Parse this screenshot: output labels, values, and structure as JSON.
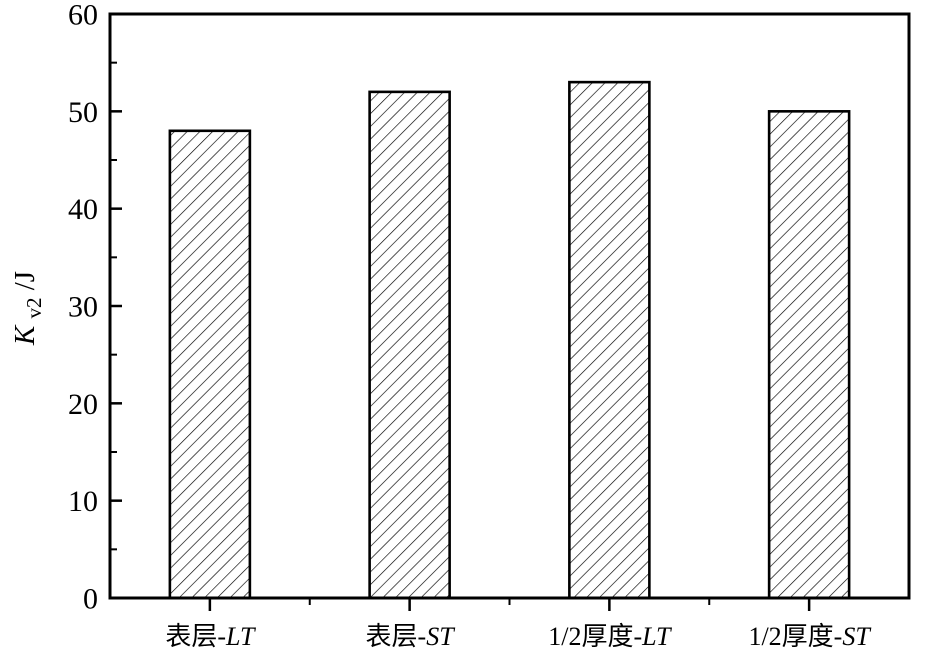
{
  "chart_data": {
    "type": "bar",
    "title": "",
    "categories": [
      "表层-LT",
      "表层-ST",
      "1/2厚度-LT",
      "1/2厚度-ST"
    ],
    "category_parts": [
      {
        "prefix": "表层-",
        "italic": "LT"
      },
      {
        "prefix": "表层-",
        "italic": "ST"
      },
      {
        "prefix": "1/2厚度-",
        "italic": "LT"
      },
      {
        "prefix": "1/2厚度-",
        "italic": "ST"
      }
    ],
    "values": [
      48,
      52,
      53,
      50
    ],
    "xlabel": "",
    "ylabel": "Kv2/J",
    "ylabel_parts": {
      "main": "K",
      "sub": "v2",
      "rest": "/J"
    },
    "ylim": [
      0,
      60
    ],
    "ytick_step": 10,
    "yminor_step": 5,
    "ytick_labels": [
      "0",
      "10",
      "20",
      "30",
      "40",
      "50",
      "60"
    ],
    "grid": false,
    "legend": "none",
    "bar_style": {
      "fill_pattern": "diagonal-hatch",
      "hatch_color": "#000000",
      "outline_color": "#000000",
      "background": "#ffffff"
    }
  },
  "colors": {
    "axis": "#000000",
    "text": "#000000",
    "background": "#ffffff"
  }
}
